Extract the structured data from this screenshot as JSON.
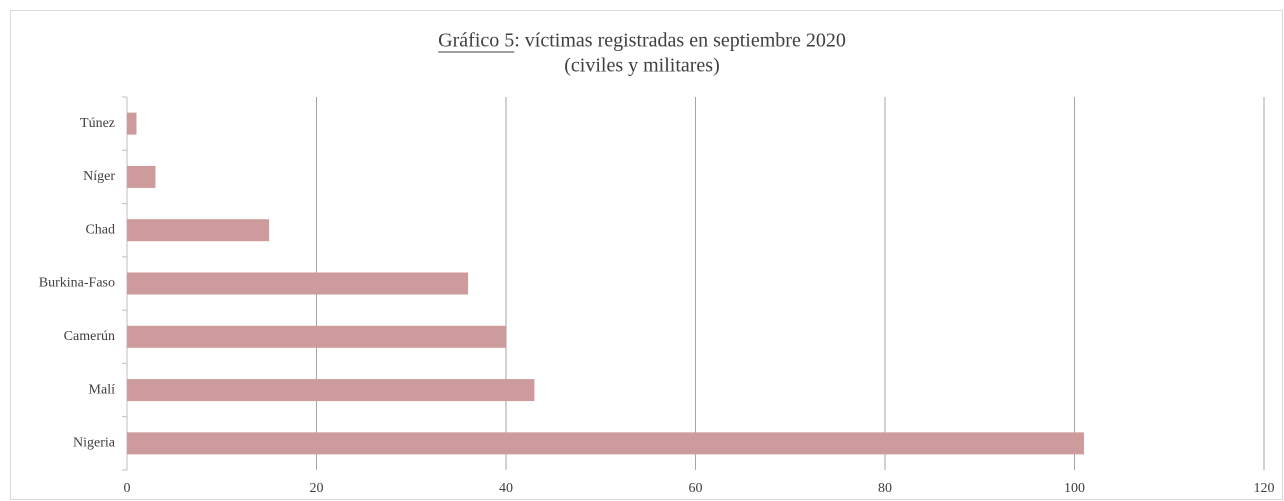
{
  "chart_data": {
    "type": "barh",
    "title": "Gráfico 5: víctimas registradas en septiembre 2020",
    "subtitle": "(civiles y militares)",
    "categories": [
      "Túnez",
      "Níger",
      "Chad",
      "Burkina-Faso",
      "Camerún",
      "Malí",
      "Nigeria"
    ],
    "values": [
      1,
      3,
      15,
      36,
      40,
      43,
      101
    ],
    "color": "#cd9b9b",
    "xlim": [
      0,
      120
    ],
    "xticks": [
      0,
      20,
      40,
      60,
      80,
      100,
      120
    ],
    "grid": true
  }
}
